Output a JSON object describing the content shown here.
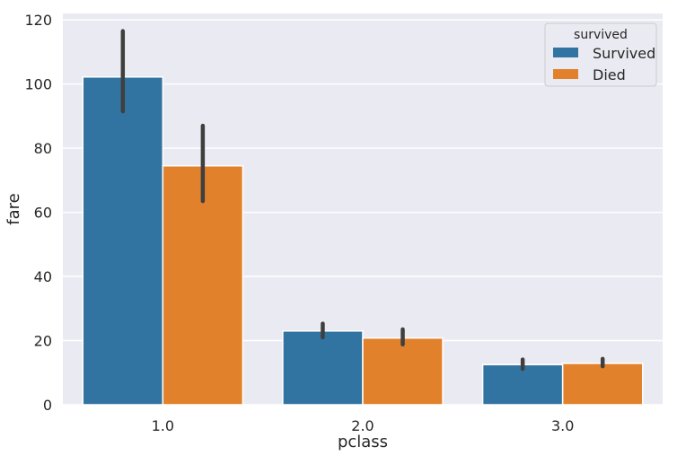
{
  "chart_data": {
    "type": "bar",
    "xlabel": "pclass",
    "ylabel": "fare",
    "categories": [
      "1.0",
      "2.0",
      "3.0"
    ],
    "ylim": [
      0,
      122
    ],
    "yticks": [
      0,
      20,
      40,
      60,
      80,
      100,
      120
    ],
    "grid": true,
    "legend": {
      "title": "survived",
      "placement": "top-right"
    },
    "series": [
      {
        "name": "Survived",
        "color": "#3274a1",
        "values": [
          102.2,
          23.0,
          12.5
        ],
        "error_low": [
          91.5,
          21.0,
          11.2
        ],
        "error_high": [
          116.5,
          25.3,
          14.1
        ]
      },
      {
        "name": "Died",
        "color": "#e1812c",
        "values": [
          74.5,
          20.8,
          12.9
        ],
        "error_low": [
          63.5,
          18.8,
          12.0
        ],
        "error_high": [
          87.0,
          23.5,
          14.3
        ]
      }
    ],
    "colors": {
      "background": "#eaeaf2",
      "grid": "#ffffff",
      "error_bar": "#3f3f3f"
    }
  }
}
